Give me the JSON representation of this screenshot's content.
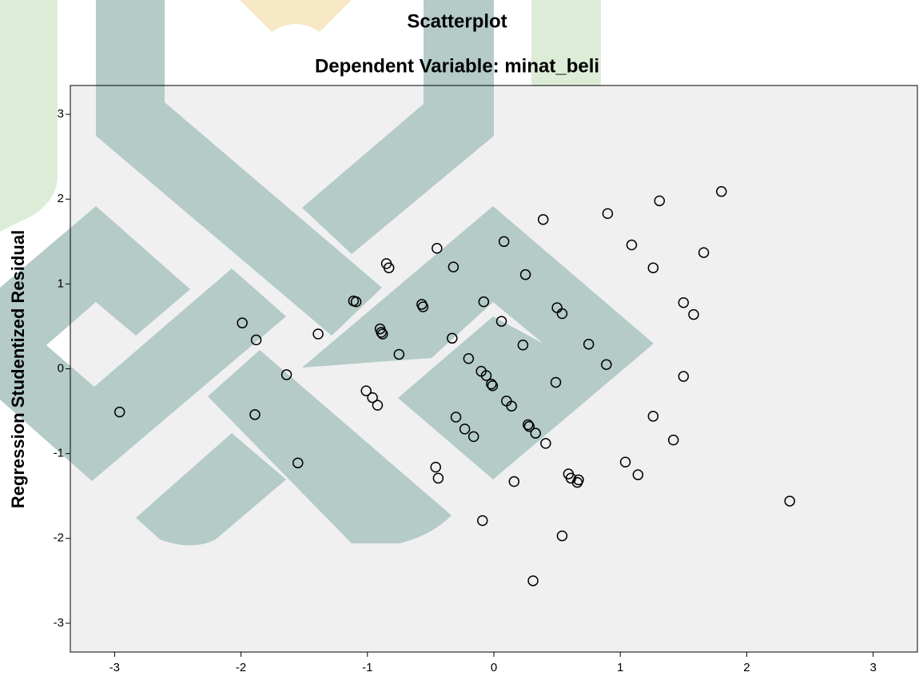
{
  "chart_data": {
    "type": "scatter",
    "title": "Scatterplot",
    "subtitle": "Dependent Variable: minat_beli",
    "y_label": "Regression Studentized Residual",
    "xlim": [
      -3.35,
      3.35
    ],
    "ylim": [
      -3.34,
      3.34
    ],
    "xticks": [
      -3,
      -2,
      -1,
      0,
      1,
      2,
      3
    ],
    "yticks": [
      3,
      2,
      1,
      0,
      -1,
      -2,
      -3
    ],
    "marker_color": "#000000",
    "background": "#f0f0f0",
    "x": [
      -2.96,
      -1.99,
      -1.88,
      -1.89,
      -1.64,
      -1.55,
      -1.39,
      -1.11,
      -1.09,
      -1.01,
      -0.96,
      -0.92,
      -0.9,
      -0.88,
      -0.89,
      -0.85,
      -0.83,
      -0.75,
      -0.57,
      -0.56,
      -0.45,
      -0.46,
      -0.44,
      -0.33,
      -0.32,
      -0.3,
      -0.23,
      -0.2,
      -0.16,
      -0.1,
      -0.08,
      -0.06,
      -0.02,
      -0.01,
      -0.09,
      0.06,
      0.08,
      0.1,
      0.14,
      0.16,
      0.23,
      0.25,
      0.27,
      0.28,
      0.33,
      0.31,
      0.39,
      0.41,
      0.49,
      0.5,
      0.54,
      0.54,
      0.59,
      0.61,
      0.66,
      0.67,
      0.75,
      0.89,
      0.9,
      1.04,
      1.09,
      1.14,
      1.26,
      1.26,
      1.31,
      1.42,
      1.5,
      1.5,
      1.58,
      1.66,
      1.8,
      2.34
    ],
    "values": [
      -0.51,
      0.54,
      0.34,
      -0.54,
      -0.07,
      -1.11,
      0.41,
      0.8,
      0.79,
      -0.26,
      -0.34,
      -0.43,
      0.47,
      0.41,
      0.43,
      1.24,
      1.19,
      0.17,
      0.76,
      0.73,
      1.42,
      -1.16,
      -1.29,
      0.36,
      1.2,
      -0.57,
      -0.71,
      0.12,
      -0.8,
      -0.03,
      0.79,
      -0.08,
      -0.18,
      -0.2,
      -1.79,
      0.56,
      1.5,
      -0.38,
      -0.44,
      -1.33,
      0.28,
      1.11,
      -0.66,
      -0.68,
      -0.76,
      -2.5,
      1.76,
      -0.88,
      -0.16,
      0.72,
      0.65,
      -1.97,
      -1.24,
      -1.29,
      -1.34,
      -1.31,
      0.29,
      0.05,
      1.83,
      -1.1,
      1.46,
      -1.25,
      -0.56,
      1.19,
      1.98,
      -0.84,
      0.78,
      -0.09,
      0.64,
      1.37,
      2.09,
      -1.56
    ]
  }
}
